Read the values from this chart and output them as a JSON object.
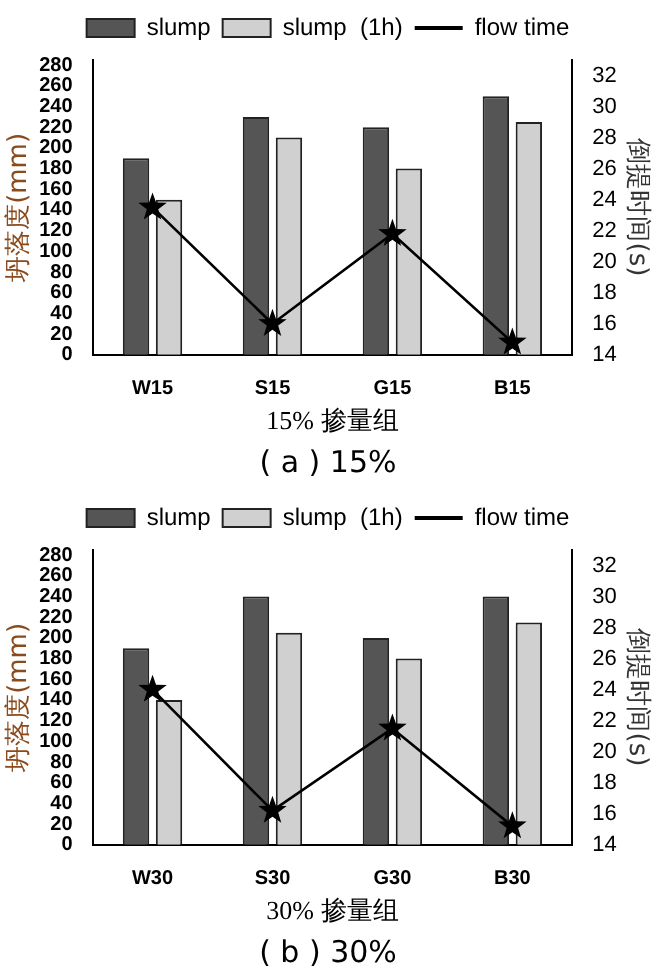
{
  "chart_data": [
    {
      "type": "bar",
      "categories": [
        "W15",
        "S15",
        "G15",
        "B15"
      ],
      "xlabel": "15% 掺量组",
      "ylabel": "坍落度(mm)",
      "y2label": "倒提时间(s)",
      "series": [
        {
          "name": "slump",
          "color": "#555555",
          "values": [
            190,
            230,
            220,
            250
          ]
        },
        {
          "name": "slump  (1h)",
          "color": "#d0d0d0",
          "values": [
            150,
            210,
            180,
            225
          ]
        },
        {
          "name": "flow time",
          "type": "line",
          "axis": "y2",
          "color": "#000000",
          "values": [
            23.5,
            16,
            21.8,
            14.8
          ]
        }
      ],
      "ylim": [
        0,
        285
      ],
      "yticks": [
        0,
        20,
        40,
        60,
        80,
        100,
        120,
        140,
        160,
        180,
        200,
        220,
        240,
        260,
        280
      ],
      "y2lim": [
        14,
        33
      ],
      "y2ticks": [
        14,
        16,
        18,
        20,
        22,
        24,
        26,
        28,
        30,
        32
      ],
      "legend": "top",
      "marker": "star",
      "annotations": [
        "( a ) 15%"
      ]
    },
    {
      "type": "bar",
      "categories": [
        "W30",
        "S30",
        "G30",
        "B30"
      ],
      "xlabel": "30% 掺量组",
      "ylabel": "坍落度(mm)",
      "y2label": "倒提时间(s)",
      "series": [
        {
          "name": "slump",
          "color": "#555555",
          "values": [
            190,
            240,
            200,
            240
          ]
        },
        {
          "name": "slump  (1h)",
          "color": "#d0d0d0",
          "values": [
            140,
            205,
            180,
            215
          ]
        },
        {
          "name": "flow time",
          "type": "line",
          "axis": "y2",
          "color": "#000000",
          "values": [
            24,
            16.2,
            21.5,
            15.2
          ]
        }
      ],
      "ylim": [
        0,
        285
      ],
      "yticks": [
        0,
        20,
        40,
        60,
        80,
        100,
        120,
        140,
        160,
        180,
        200,
        220,
        240,
        260,
        280
      ],
      "y2lim": [
        14,
        33
      ],
      "y2ticks": [
        14,
        16,
        18,
        20,
        22,
        24,
        26,
        28,
        30,
        32
      ],
      "legend": "top",
      "marker": "star",
      "annotations": [
        "( b ) 30%"
      ]
    }
  ]
}
